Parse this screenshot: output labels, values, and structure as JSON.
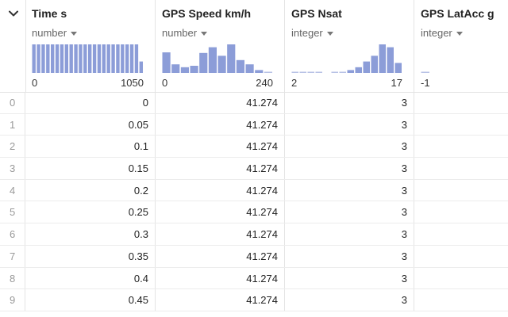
{
  "corner": {
    "icon": "chevron-down-icon"
  },
  "columns": [
    {
      "name": "Time s",
      "type": "number",
      "range_min": "0",
      "range_max": "1050",
      "histogram": [
        1,
        1,
        1,
        1,
        1,
        1,
        1,
        1,
        1,
        1,
        1,
        1,
        1,
        1,
        1,
        1,
        1,
        1,
        1,
        1,
        1,
        1,
        1,
        0.4
      ]
    },
    {
      "name": "GPS Speed km/h",
      "type": "number",
      "range_min": "0",
      "range_max": "240",
      "histogram": [
        0.72,
        0.3,
        0.2,
        0.25,
        0.7,
        0.9,
        0.6,
        1,
        0.45,
        0.3,
        0.1,
        0.04
      ]
    },
    {
      "name": "GPS Nsat",
      "type": "integer",
      "range_min": "2",
      "range_max": "17",
      "histogram": [
        0.03,
        0.03,
        0.03,
        0.03,
        0,
        0.03,
        0.03,
        0.1,
        0.2,
        0.4,
        0.6,
        1,
        0.9,
        0.35
      ]
    },
    {
      "name": "GPS LatAcc g",
      "type": "integer",
      "range_min": "-1",
      "range_max": "",
      "histogram": [
        0.03
      ]
    }
  ],
  "rows": [
    {
      "index": "0",
      "time": "0",
      "speed": "41.274",
      "nsat": "3",
      "latacc": ""
    },
    {
      "index": "1",
      "time": "0.05",
      "speed": "41.274",
      "nsat": "3",
      "latacc": ""
    },
    {
      "index": "2",
      "time": "0.1",
      "speed": "41.274",
      "nsat": "3",
      "latacc": ""
    },
    {
      "index": "3",
      "time": "0.15",
      "speed": "41.274",
      "nsat": "3",
      "latacc": ""
    },
    {
      "index": "4",
      "time": "0.2",
      "speed": "41.274",
      "nsat": "3",
      "latacc": ""
    },
    {
      "index": "5",
      "time": "0.25",
      "speed": "41.274",
      "nsat": "3",
      "latacc": ""
    },
    {
      "index": "6",
      "time": "0.3",
      "speed": "41.274",
      "nsat": "3",
      "latacc": ""
    },
    {
      "index": "7",
      "time": "0.35",
      "speed": "41.274",
      "nsat": "3",
      "latacc": ""
    },
    {
      "index": "8",
      "time": "0.4",
      "speed": "41.274",
      "nsat": "3",
      "latacc": ""
    },
    {
      "index": "9",
      "time": "0.45",
      "speed": "41.274",
      "nsat": "3",
      "latacc": ""
    }
  ],
  "colors": {
    "bar": "#8c9dd8",
    "baseline": "#b8c2e6"
  }
}
